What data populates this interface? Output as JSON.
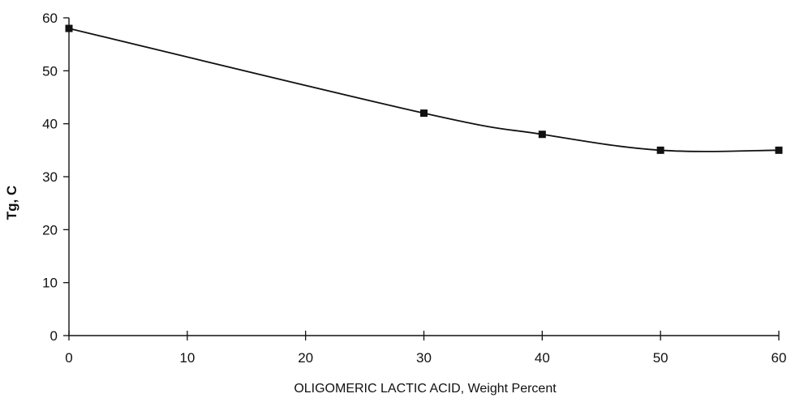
{
  "chart_data": {
    "type": "line",
    "title": "",
    "xlabel": "OLIGOMERIC LACTIC ACID, Weight Percent",
    "ylabel": "Tg, C",
    "xlim": [
      0,
      60
    ],
    "ylim": [
      0,
      60
    ],
    "xticks": [
      0,
      10,
      20,
      30,
      40,
      50,
      60
    ],
    "yticks": [
      0,
      10,
      20,
      30,
      40,
      50,
      60
    ],
    "grid": false,
    "legend": "none",
    "series": [
      {
        "x": [
          0,
          30,
          40,
          50,
          60
        ],
        "y": [
          58,
          42,
          38,
          35,
          35
        ],
        "marker": "square",
        "color": "#111111"
      }
    ]
  }
}
